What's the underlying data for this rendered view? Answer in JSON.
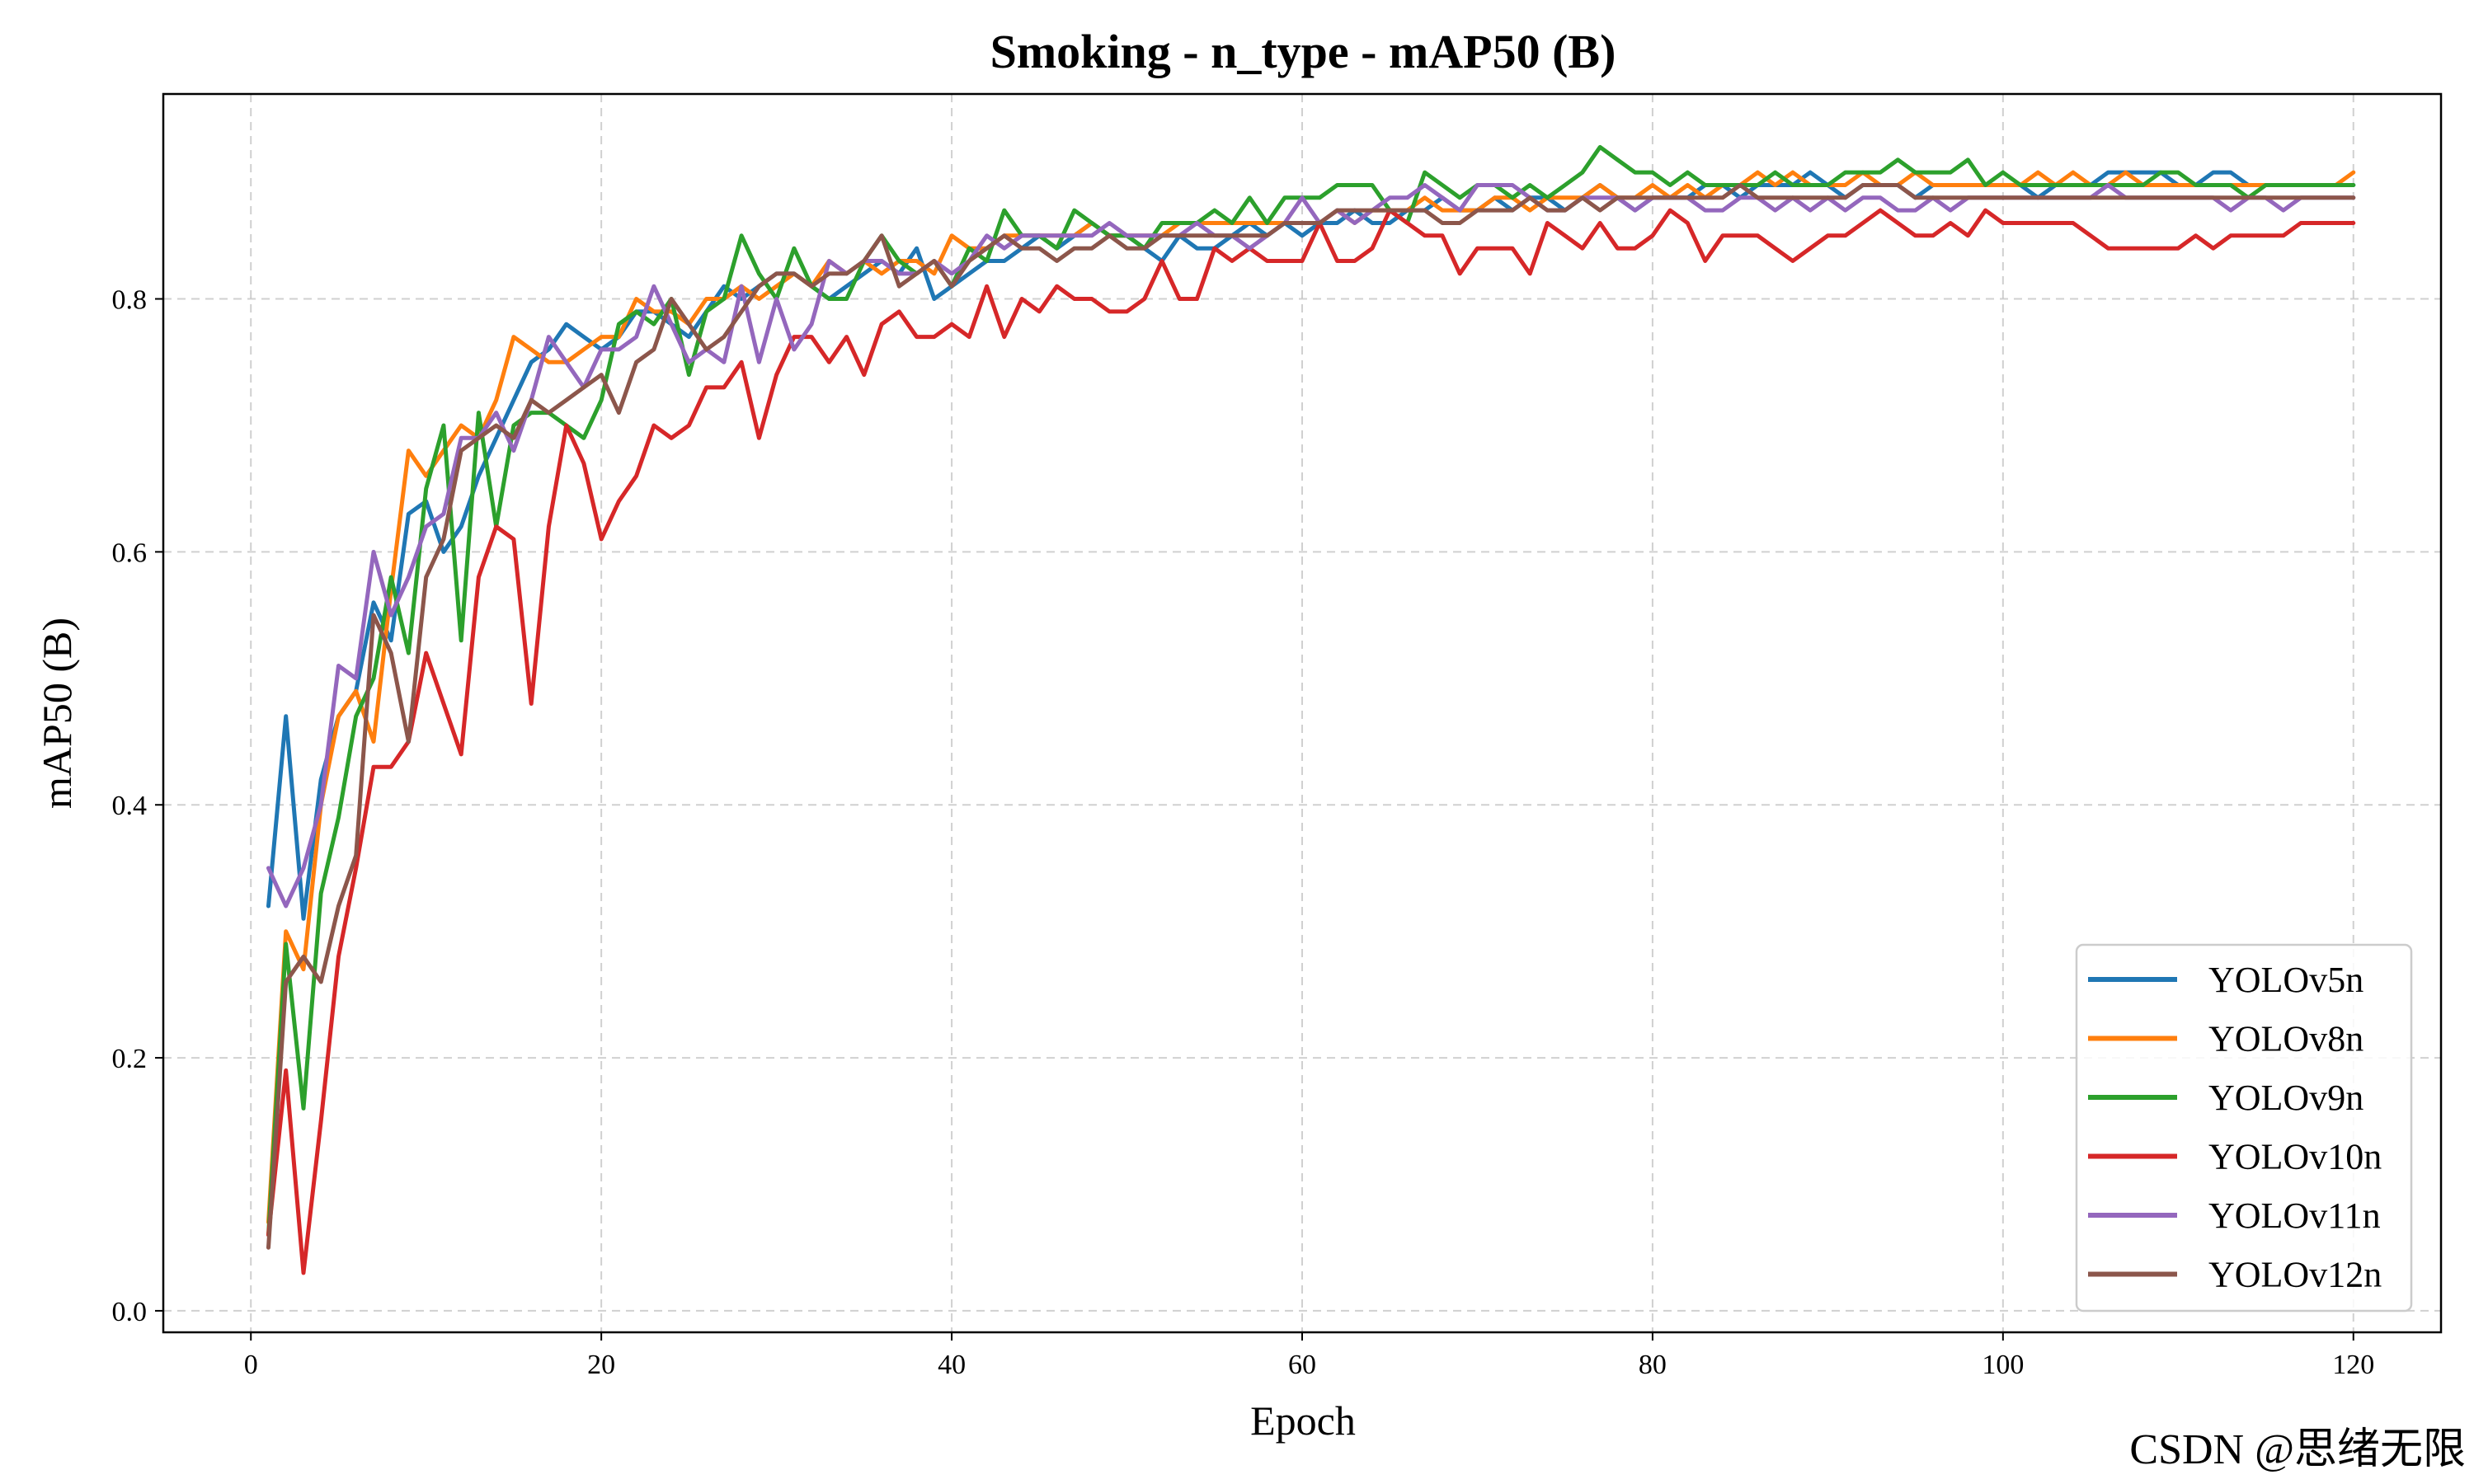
{
  "chart_data": {
    "type": "line",
    "title": "Smoking - n_type - mAP50 (B)",
    "xlabel": "Epoch",
    "ylabel": "mAP50 (B)",
    "xlim": [
      -5,
      125
    ],
    "ylim": [
      -0.017,
      0.962
    ],
    "xticks": [
      0,
      20,
      40,
      60,
      80,
      100,
      120
    ],
    "yticks": [
      0.0,
      0.2,
      0.4,
      0.6,
      0.8
    ],
    "grid": true,
    "legend_position": "lower-right",
    "x": [
      1,
      2,
      3,
      4,
      5,
      6,
      7,
      8,
      9,
      10,
      11,
      12,
      13,
      14,
      15,
      16,
      17,
      18,
      19,
      20,
      21,
      22,
      23,
      24,
      25,
      26,
      27,
      28,
      29,
      30,
      31,
      32,
      33,
      34,
      35,
      36,
      37,
      38,
      39,
      40,
      41,
      42,
      43,
      44,
      45,
      46,
      47,
      48,
      49,
      50,
      51,
      52,
      53,
      54,
      55,
      56,
      57,
      58,
      59,
      60,
      61,
      62,
      63,
      64,
      65,
      66,
      67,
      68,
      69,
      70,
      71,
      72,
      73,
      74,
      75,
      76,
      77,
      78,
      79,
      80,
      81,
      82,
      83,
      84,
      85,
      86,
      87,
      88,
      89,
      90,
      91,
      92,
      93,
      94,
      95,
      96,
      97,
      98,
      99,
      100,
      101,
      102,
      103,
      104,
      105,
      106,
      107,
      108,
      109,
      110,
      111,
      112,
      113,
      114,
      115,
      116,
      117,
      118,
      119,
      120
    ],
    "series": [
      {
        "name": "YOLOv5n",
        "color": "#1f77b4",
        "values": [
          0.32,
          0.47,
          0.31,
          0.42,
          0.47,
          0.49,
          0.56,
          0.53,
          0.63,
          0.64,
          0.6,
          0.62,
          0.66,
          0.69,
          0.72,
          0.75,
          0.76,
          0.78,
          0.77,
          0.76,
          0.77,
          0.79,
          0.79,
          0.78,
          0.77,
          0.79,
          0.81,
          0.8,
          0.81,
          0.82,
          0.82,
          0.81,
          0.8,
          0.81,
          0.82,
          0.83,
          0.82,
          0.84,
          0.8,
          0.81,
          0.82,
          0.83,
          0.83,
          0.84,
          0.85,
          0.84,
          0.85,
          0.86,
          0.85,
          0.85,
          0.84,
          0.83,
          0.85,
          0.84,
          0.84,
          0.85,
          0.86,
          0.85,
          0.86,
          0.85,
          0.86,
          0.86,
          0.87,
          0.86,
          0.86,
          0.87,
          0.87,
          0.88,
          0.87,
          0.87,
          0.88,
          0.87,
          0.88,
          0.88,
          0.87,
          0.88,
          0.89,
          0.88,
          0.87,
          0.88,
          0.88,
          0.88,
          0.89,
          0.89,
          0.88,
          0.89,
          0.89,
          0.89,
          0.9,
          0.89,
          0.88,
          0.89,
          0.89,
          0.89,
          0.88,
          0.89,
          0.89,
          0.89,
          0.89,
          0.89,
          0.89,
          0.88,
          0.89,
          0.89,
          0.89,
          0.9,
          0.9,
          0.9,
          0.9,
          0.89,
          0.89,
          0.9,
          0.9,
          0.89,
          0.89,
          0.89,
          0.89,
          0.89,
          0.89,
          0.89
        ]
      },
      {
        "name": "YOLOv8n",
        "color": "#ff7f0e",
        "values": [
          0.07,
          0.3,
          0.27,
          0.4,
          0.47,
          0.49,
          0.45,
          0.57,
          0.68,
          0.66,
          0.68,
          0.7,
          0.69,
          0.72,
          0.77,
          0.76,
          0.75,
          0.75,
          0.76,
          0.77,
          0.77,
          0.8,
          0.79,
          0.79,
          0.78,
          0.8,
          0.8,
          0.81,
          0.8,
          0.81,
          0.82,
          0.81,
          0.83,
          0.82,
          0.83,
          0.82,
          0.83,
          0.83,
          0.82,
          0.85,
          0.84,
          0.84,
          0.85,
          0.85,
          0.85,
          0.85,
          0.85,
          0.86,
          0.85,
          0.85,
          0.85,
          0.85,
          0.86,
          0.86,
          0.86,
          0.86,
          0.86,
          0.86,
          0.86,
          0.86,
          0.86,
          0.87,
          0.86,
          0.87,
          0.87,
          0.87,
          0.88,
          0.87,
          0.87,
          0.87,
          0.88,
          0.88,
          0.87,
          0.88,
          0.88,
          0.88,
          0.89,
          0.88,
          0.88,
          0.89,
          0.88,
          0.89,
          0.88,
          0.89,
          0.89,
          0.9,
          0.89,
          0.9,
          0.89,
          0.89,
          0.89,
          0.9,
          0.89,
          0.89,
          0.9,
          0.89,
          0.89,
          0.89,
          0.89,
          0.89,
          0.89,
          0.9,
          0.89,
          0.9,
          0.89,
          0.89,
          0.9,
          0.89,
          0.89,
          0.89,
          0.89,
          0.89,
          0.89,
          0.89,
          0.89,
          0.89,
          0.89,
          0.89,
          0.89,
          0.9
        ]
      },
      {
        "name": "YOLOv9n",
        "color": "#2ca02c",
        "values": [
          0.06,
          0.29,
          0.16,
          0.33,
          0.39,
          0.47,
          0.5,
          0.58,
          0.52,
          0.65,
          0.7,
          0.53,
          0.71,
          0.62,
          0.7,
          0.71,
          0.71,
          0.7,
          0.69,
          0.72,
          0.78,
          0.79,
          0.78,
          0.8,
          0.74,
          0.79,
          0.8,
          0.85,
          0.82,
          0.8,
          0.84,
          0.81,
          0.8,
          0.8,
          0.83,
          0.85,
          0.83,
          0.82,
          0.83,
          0.81,
          0.84,
          0.83,
          0.87,
          0.85,
          0.85,
          0.84,
          0.87,
          0.86,
          0.85,
          0.85,
          0.84,
          0.86,
          0.86,
          0.86,
          0.87,
          0.86,
          0.88,
          0.86,
          0.88,
          0.88,
          0.88,
          0.89,
          0.89,
          0.89,
          0.87,
          0.86,
          0.9,
          0.89,
          0.88,
          0.89,
          0.89,
          0.88,
          0.89,
          0.88,
          0.89,
          0.9,
          0.92,
          0.91,
          0.9,
          0.9,
          0.89,
          0.9,
          0.89,
          0.89,
          0.89,
          0.89,
          0.9,
          0.89,
          0.89,
          0.89,
          0.9,
          0.9,
          0.9,
          0.91,
          0.9,
          0.9,
          0.9,
          0.91,
          0.89,
          0.9,
          0.89,
          0.89,
          0.89,
          0.89,
          0.89,
          0.89,
          0.89,
          0.89,
          0.9,
          0.9,
          0.89,
          0.89,
          0.89,
          0.88,
          0.89,
          0.89,
          0.89,
          0.89,
          0.89,
          0.89
        ]
      },
      {
        "name": "YOLOv10n",
        "color": "#d62728",
        "values": [
          0.06,
          0.19,
          0.03,
          0.15,
          0.28,
          0.35,
          0.43,
          0.43,
          0.45,
          0.52,
          0.48,
          0.44,
          0.58,
          0.62,
          0.61,
          0.48,
          0.62,
          0.7,
          0.67,
          0.61,
          0.64,
          0.66,
          0.7,
          0.69,
          0.7,
          0.73,
          0.73,
          0.75,
          0.69,
          0.74,
          0.77,
          0.77,
          0.75,
          0.77,
          0.74,
          0.78,
          0.79,
          0.77,
          0.77,
          0.78,
          0.77,
          0.81,
          0.77,
          0.8,
          0.79,
          0.81,
          0.8,
          0.8,
          0.79,
          0.79,
          0.8,
          0.83,
          0.8,
          0.8,
          0.84,
          0.83,
          0.84,
          0.83,
          0.83,
          0.83,
          0.86,
          0.83,
          0.83,
          0.84,
          0.87,
          0.86,
          0.85,
          0.85,
          0.82,
          0.84,
          0.84,
          0.84,
          0.82,
          0.86,
          0.85,
          0.84,
          0.86,
          0.84,
          0.84,
          0.85,
          0.87,
          0.86,
          0.83,
          0.85,
          0.85,
          0.85,
          0.84,
          0.83,
          0.84,
          0.85,
          0.85,
          0.86,
          0.87,
          0.86,
          0.85,
          0.85,
          0.86,
          0.85,
          0.87,
          0.86,
          0.86,
          0.86,
          0.86,
          0.86,
          0.85,
          0.84,
          0.84,
          0.84,
          0.84,
          0.84,
          0.85,
          0.84,
          0.85,
          0.85,
          0.85,
          0.85,
          0.86,
          0.86,
          0.86,
          0.86
        ]
      },
      {
        "name": "YOLOv11n",
        "color": "#9467bd",
        "values": [
          0.35,
          0.32,
          0.35,
          0.4,
          0.51,
          0.5,
          0.6,
          0.55,
          0.58,
          0.62,
          0.63,
          0.69,
          0.69,
          0.71,
          0.68,
          0.72,
          0.77,
          0.75,
          0.73,
          0.76,
          0.76,
          0.77,
          0.81,
          0.78,
          0.75,
          0.76,
          0.75,
          0.81,
          0.75,
          0.8,
          0.76,
          0.78,
          0.83,
          0.82,
          0.83,
          0.83,
          0.82,
          0.82,
          0.83,
          0.82,
          0.83,
          0.85,
          0.84,
          0.85,
          0.85,
          0.85,
          0.85,
          0.85,
          0.86,
          0.85,
          0.85,
          0.85,
          0.85,
          0.86,
          0.85,
          0.85,
          0.84,
          0.85,
          0.86,
          0.88,
          0.86,
          0.87,
          0.86,
          0.87,
          0.88,
          0.88,
          0.89,
          0.88,
          0.87,
          0.89,
          0.89,
          0.89,
          0.88,
          0.87,
          0.87,
          0.88,
          0.88,
          0.88,
          0.87,
          0.88,
          0.88,
          0.88,
          0.87,
          0.87,
          0.88,
          0.88,
          0.87,
          0.88,
          0.87,
          0.88,
          0.87,
          0.88,
          0.88,
          0.87,
          0.87,
          0.88,
          0.87,
          0.88,
          0.88,
          0.88,
          0.88,
          0.88,
          0.88,
          0.88,
          0.88,
          0.89,
          0.88,
          0.88,
          0.88,
          0.88,
          0.88,
          0.88,
          0.87,
          0.88,
          0.88,
          0.87,
          0.88,
          0.88,
          0.88,
          0.88
        ]
      },
      {
        "name": "YOLOv12n",
        "color": "#8c564b",
        "values": [
          0.05,
          0.26,
          0.28,
          0.26,
          0.32,
          0.36,
          0.55,
          0.52,
          0.45,
          0.58,
          0.61,
          0.68,
          0.69,
          0.7,
          0.69,
          0.72,
          0.71,
          0.72,
          0.73,
          0.74,
          0.71,
          0.75,
          0.76,
          0.8,
          0.78,
          0.76,
          0.77,
          0.79,
          0.81,
          0.82,
          0.82,
          0.81,
          0.82,
          0.82,
          0.83,
          0.85,
          0.81,
          0.82,
          0.83,
          0.81,
          0.83,
          0.84,
          0.85,
          0.84,
          0.84,
          0.83,
          0.84,
          0.84,
          0.85,
          0.84,
          0.84,
          0.85,
          0.85,
          0.85,
          0.85,
          0.85,
          0.85,
          0.85,
          0.86,
          0.86,
          0.86,
          0.87,
          0.87,
          0.87,
          0.87,
          0.87,
          0.87,
          0.86,
          0.86,
          0.87,
          0.87,
          0.87,
          0.88,
          0.87,
          0.87,
          0.88,
          0.87,
          0.88,
          0.88,
          0.88,
          0.88,
          0.88,
          0.88,
          0.88,
          0.89,
          0.88,
          0.88,
          0.88,
          0.88,
          0.88,
          0.88,
          0.89,
          0.89,
          0.89,
          0.88,
          0.88,
          0.88,
          0.88,
          0.88,
          0.88,
          0.88,
          0.88,
          0.88,
          0.88,
          0.88,
          0.88,
          0.88,
          0.88,
          0.88,
          0.88,
          0.88,
          0.88,
          0.88,
          0.88,
          0.88,
          0.88,
          0.88,
          0.88,
          0.88,
          0.88
        ]
      }
    ]
  },
  "watermark": "CSDN @思绪无限"
}
